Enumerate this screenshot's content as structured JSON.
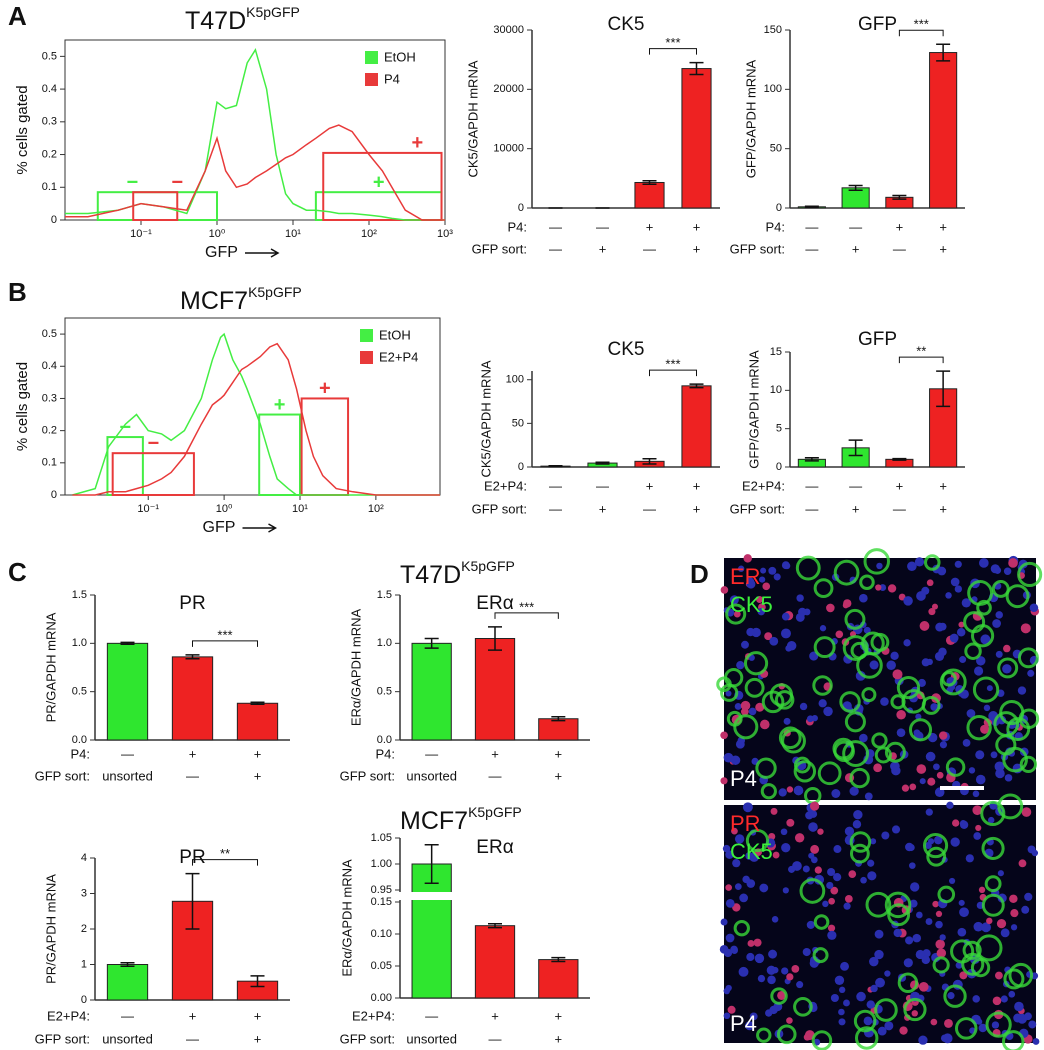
{
  "panel_labels": [
    "A",
    "B",
    "C",
    "D"
  ],
  "sections": [
    {
      "name": "T47D",
      "sup": "K5pGFP"
    },
    {
      "name": "MCF7",
      "sup": "K5pGFP"
    },
    {
      "name": "T47D",
      "sup": "K5pGFP"
    },
    {
      "name": "MCF7",
      "sup": "K5pGFP"
    }
  ],
  "images": [
    {
      "labels": [
        "ER",
        "CK5",
        "P4"
      ]
    },
    {
      "labels": [
        "PR",
        "CK5",
        "P4"
      ]
    }
  ],
  "chart_data": [
    {
      "type": "histogram_line",
      "ylabel": "% cells gated",
      "xlabel": "GFP",
      "xscale": "log",
      "legend": "upper right",
      "xlim": [
        0.01,
        1000
      ],
      "ylim": [
        0,
        0.55
      ],
      "xticks": [
        {
          "value": 0.1,
          "label": "10⁻¹"
        },
        {
          "value": 1,
          "label": "10⁰"
        },
        {
          "value": 10,
          "label": "10¹"
        },
        {
          "value": 100,
          "label": "10²"
        },
        {
          "value": 1000,
          "label": "10³"
        }
      ],
      "yticks": [
        0,
        0.1,
        0.2,
        0.3,
        0.4,
        0.5
      ],
      "x": [
        0.01,
        0.02,
        0.05,
        0.1,
        0.2,
        0.4,
        0.7,
        1,
        1.3,
        1.8,
        2.5,
        3.2,
        4.5,
        6,
        8,
        10,
        15,
        20,
        30,
        40,
        60,
        100,
        150,
        200,
        300,
        500,
        1000
      ],
      "series": [
        {
          "name": "EtOH",
          "color": "#44ee44",
          "values": [
            0.02,
            0.02,
            0.03,
            0.05,
            0.04,
            0.02,
            0.15,
            0.36,
            0.34,
            0.35,
            0.48,
            0.52,
            0.4,
            0.2,
            0.08,
            0.05,
            0.03,
            0.03,
            0.025,
            0.02,
            0.02,
            0.015,
            0.01,
            0.005,
            0,
            0,
            0
          ]
        },
        {
          "name": "P4",
          "color": "#e83a3a",
          "values": [
            0.01,
            0.01,
            0.03,
            0.05,
            0.04,
            0.03,
            0.15,
            0.25,
            0.15,
            0.1,
            0.11,
            0.13,
            0.15,
            0.17,
            0.19,
            0.2,
            0.23,
            0.25,
            0.28,
            0.29,
            0.27,
            0.2,
            0.15,
            0.1,
            0.03,
            0,
            0
          ]
        }
      ],
      "gates": [
        {
          "label": "−",
          "color": "#44ee44",
          "x": [
            0.027,
            1
          ],
          "y": 0.085
        },
        {
          "label": "−",
          "color": "#e83a3a",
          "x": [
            0.079,
            0.3
          ],
          "y": 0.085
        },
        {
          "label": "+",
          "color": "#44ee44",
          "x": [
            20,
            900
          ],
          "y": 0.085
        },
        {
          "label": "+",
          "color": "#e83a3a",
          "x": [
            25,
            900
          ],
          "y": 0.205
        }
      ]
    },
    {
      "type": "bar",
      "title": "CK5",
      "ylabel": "CK5/GAPDH mRNA",
      "ylim": [
        0,
        30000
      ],
      "yticks": [
        0,
        10000,
        20000,
        30000
      ],
      "values": [
        0,
        0,
        4300,
        23500
      ],
      "errors": [
        0,
        0,
        300,
        1000
      ],
      "colors": [
        "#2fe62f",
        "#2fe62f",
        "#ee2222",
        "#ee2222"
      ],
      "significance": [
        {
          "label": "***",
          "between": [
            2,
            3
          ]
        }
      ],
      "rows": [
        {
          "label": "P4:",
          "values": [
            "—",
            "—",
            "+",
            "+"
          ]
        },
        {
          "label": "GFP sort:",
          "values": [
            "—",
            "+",
            "—",
            "+"
          ]
        }
      ]
    },
    {
      "type": "bar",
      "title": "GFP",
      "ylabel": "GFP/GAPDH mRNA",
      "ylim": [
        0,
        150
      ],
      "yticks": [
        0,
        50,
        100,
        150
      ],
      "values": [
        1,
        17,
        9,
        131
      ],
      "errors": [
        0.5,
        2,
        1.5,
        7
      ],
      "colors": [
        "#2fe62f",
        "#2fe62f",
        "#ee2222",
        "#ee2222"
      ],
      "significance": [
        {
          "label": "***",
          "between": [
            2,
            3
          ]
        }
      ],
      "rows": [
        {
          "label": "P4:",
          "values": [
            "—",
            "—",
            "+",
            "+"
          ]
        },
        {
          "label": "GFP sort:",
          "values": [
            "—",
            "+",
            "—",
            "+"
          ]
        }
      ]
    },
    {
      "type": "histogram_line",
      "ylabel": "% cells gated",
      "xlabel": "GFP",
      "xscale": "log",
      "legend": "upper right",
      "xlim": [
        0.008,
        700
      ],
      "ylim": [
        0,
        0.55
      ],
      "xticks": [
        {
          "value": 0.1,
          "label": "10⁻¹"
        },
        {
          "value": 1,
          "label": "10⁰"
        },
        {
          "value": 10,
          "label": "10¹"
        },
        {
          "value": 100,
          "label": "10²"
        }
      ],
      "yticks": [
        0,
        0.1,
        0.2,
        0.3,
        0.4,
        0.5
      ],
      "x": [
        0.01,
        0.02,
        0.03,
        0.05,
        0.07,
        0.1,
        0.15,
        0.2,
        0.3,
        0.5,
        0.7,
        0.9,
        1,
        1.3,
        1.7,
        2,
        3,
        4,
        5,
        7,
        9,
        12,
        15,
        20,
        30,
        50,
        100,
        300,
        700
      ],
      "series": [
        {
          "name": "EtOH",
          "color": "#44ee44",
          "values": [
            0,
            0.02,
            0.15,
            0.22,
            0.25,
            0.2,
            0.19,
            0.17,
            0.2,
            0.3,
            0.42,
            0.49,
            0.5,
            0.42,
            0.37,
            0.33,
            0.22,
            0.12,
            0.05,
            0.02,
            0,
            0,
            0,
            0,
            0,
            0,
            0,
            0,
            0
          ]
        },
        {
          "name": "E2+P4",
          "color": "#e83a3a",
          "values": [
            0,
            0,
            0.01,
            0.01,
            0.02,
            0.03,
            0.05,
            0.07,
            0.12,
            0.22,
            0.28,
            0.3,
            0.31,
            0.35,
            0.39,
            0.4,
            0.43,
            0.46,
            0.47,
            0.42,
            0.33,
            0.2,
            0.12,
            0.06,
            0.02,
            0.01,
            0,
            0,
            0
          ]
        }
      ],
      "gates": [
        {
          "label": "−",
          "color": "#44ee44",
          "x": [
            0.029,
            0.085
          ],
          "y": 0.18
        },
        {
          "label": "−",
          "color": "#e83a3a",
          "x": [
            0.034,
            0.4
          ],
          "y": 0.13
        },
        {
          "label": "+",
          "color": "#44ee44",
          "x": [
            2.9,
            10
          ],
          "y": 0.25
        },
        {
          "label": "+",
          "color": "#e83a3a",
          "x": [
            10.5,
            43
          ],
          "y": 0.3
        }
      ]
    },
    {
      "type": "bar",
      "title": "CK5",
      "ylabel": "CK5/GAPDH mRNA",
      "ylim": [
        0,
        110
      ],
      "yticks": [
        0,
        50,
        100
      ],
      "values": [
        1,
        4.5,
        6.5,
        93
      ],
      "errors": [
        0.5,
        1,
        3,
        2
      ],
      "colors": [
        "#2fe62f",
        "#2fe62f",
        "#ee2222",
        "#ee2222"
      ],
      "significance": [
        {
          "label": "***",
          "between": [
            2,
            3
          ]
        }
      ],
      "rows": [
        {
          "label": "E2+P4:",
          "values": [
            "—",
            "—",
            "+",
            "+"
          ]
        },
        {
          "label": "GFP sort:",
          "values": [
            "—",
            "+",
            "—",
            "+"
          ]
        }
      ]
    },
    {
      "type": "bar",
      "title": "GFP",
      "ylabel": "GFP/GAPDH mRNA",
      "ylim": [
        0,
        15
      ],
      "yticks": [
        0,
        5,
        10,
        15
      ],
      "values": [
        1,
        2.5,
        1,
        10.2
      ],
      "errors": [
        0.2,
        1,
        0.1,
        2.3
      ],
      "colors": [
        "#2fe62f",
        "#2fe62f",
        "#ee2222",
        "#ee2222"
      ],
      "significance": [
        {
          "label": "**",
          "between": [
            2,
            3
          ]
        }
      ],
      "rows": [
        {
          "label": "E2+P4:",
          "values": [
            "—",
            "—",
            "+",
            "+"
          ]
        },
        {
          "label": "GFP sort:",
          "values": [
            "—",
            "+",
            "—",
            "+"
          ]
        }
      ]
    },
    {
      "type": "bar",
      "title": "PR",
      "ylabel": "PR/GAPDH mRNA",
      "ylim": [
        0,
        1.5
      ],
      "yticks": [
        {
          "value": 0,
          "label": "0.0"
        },
        0.5,
        {
          "value": 1,
          "label": "1.0"
        },
        1.5
      ],
      "values": [
        1,
        0.86,
        0.38
      ],
      "errors": [
        0.01,
        0.02,
        0.01
      ],
      "colors": [
        "#2fe62f",
        "#ee2222",
        "#ee2222"
      ],
      "significance": [
        {
          "label": "***",
          "between": [
            1,
            2
          ]
        }
      ],
      "rows": [
        {
          "label": "P4:",
          "values": [
            "—",
            "+",
            "+"
          ]
        },
        {
          "label": "GFP sort:",
          "values": [
            "unsorted",
            "—",
            "+"
          ]
        }
      ]
    },
    {
      "type": "bar",
      "title": "ERα",
      "ylabel": "ERα/GAPDH mRNA",
      "ylim": [
        0,
        1.5
      ],
      "yticks": [
        {
          "value": 0,
          "label": "0.0"
        },
        0.5,
        {
          "value": 1,
          "label": "1.0"
        },
        1.5
      ],
      "values": [
        1.0,
        1.05,
        0.22
      ],
      "errors": [
        0.05,
        0.12,
        0.02
      ],
      "colors": [
        "#2fe62f",
        "#ee2222",
        "#ee2222"
      ],
      "significance": [
        {
          "label": "***",
          "between": [
            1,
            2
          ]
        }
      ],
      "rows": [
        {
          "label": "P4:",
          "values": [
            "—",
            "+",
            "+"
          ]
        },
        {
          "label": "GFP sort:",
          "values": [
            "unsorted",
            "—",
            "+"
          ]
        }
      ]
    },
    {
      "type": "bar",
      "title": "PR",
      "ylabel": "PR/GAPDH mRNA",
      "ylim": [
        0,
        4
      ],
      "yticks": [
        0,
        1,
        2,
        3,
        4
      ],
      "values": [
        1,
        2.78,
        0.53
      ],
      "errors": [
        0.05,
        0.78,
        0.15
      ],
      "colors": [
        "#2fe62f",
        "#ee2222",
        "#ee2222"
      ],
      "significance": [
        {
          "label": "**",
          "between": [
            1,
            2
          ]
        }
      ],
      "rows": [
        {
          "label": "E2+P4:",
          "values": [
            "—",
            "+",
            "+"
          ]
        },
        {
          "label": "GFP sort:",
          "values": [
            "unsorted",
            "—",
            "+"
          ]
        }
      ]
    },
    {
      "type": "bar",
      "title": "ERα",
      "ylabel": "ERα/GAPDH mRNA",
      "ylim": [
        0,
        1.05
      ],
      "ybreak": [
        0.15,
        0.95
      ],
      "yticks": [
        {
          "value": 0,
          "label": "0.00"
        },
        0.05,
        {
          "value": 0.1,
          "label": "0.10"
        },
        0.15,
        0.95,
        {
          "value": 1,
          "label": "1.00"
        },
        1.05
      ],
      "values": [
        1.0,
        0.113,
        0.06
      ],
      "errors": [
        0.037,
        0.003,
        0.003
      ],
      "colors": [
        "#2fe62f",
        "#ee2222",
        "#ee2222"
      ],
      "rows": [
        {
          "label": "E2+P4:",
          "values": [
            "—",
            "+",
            "+"
          ]
        },
        {
          "label": "GFP sort:",
          "values": [
            "unsorted",
            "—",
            "+"
          ]
        }
      ]
    }
  ]
}
